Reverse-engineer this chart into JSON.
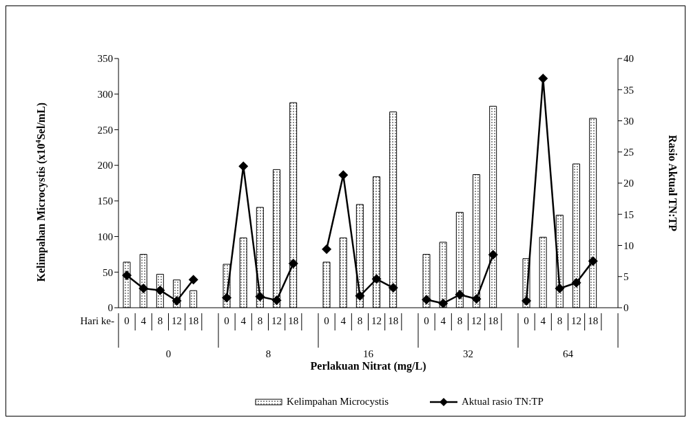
{
  "chart_data": {
    "type": "bar",
    "ylabel": "Kelimpahan Microcystis (x10$^{4}$Sel/mL)",
    "y2label": "Rasio Aktual TN:TP",
    "xlabel": "Perlakuan Nitrat (mg/L)",
    "categories": [
      "0",
      "4",
      "8",
      "12",
      "18",
      null,
      "0",
      "4",
      "8",
      "12",
      "18",
      null,
      "0",
      "4",
      "8",
      "12",
      "18",
      null,
      "0",
      "4",
      "8",
      "12",
      "18",
      null,
      "0",
      "4",
      "8",
      "12",
      "18",
      null
    ],
    "annotations": [
      "Hari ke-",
      "0",
      "8",
      "16",
      "32",
      "64"
    ],
    "series": [
      {
        "name": "Kelimpahan Microcystis",
        "color": "#000000",
        "values": [
          64,
          75,
          47,
          39,
          24,
          null,
          61,
          98,
          141,
          194,
          288,
          null,
          64,
          98,
          145,
          184,
          275,
          null,
          75,
          92,
          134,
          187,
          283,
          null,
          69,
          99,
          130,
          202,
          266,
          null
        ]
      },
      {
        "name": "Aktual rasio TN:TP",
        "type": "line",
        "axis": "y2",
        "color": "#000000",
        "marker": "diamond",
        "values": [
          5.2,
          3.1,
          2.8,
          1.1,
          4.5,
          null,
          1.6,
          22.7,
          1.8,
          1.2,
          7.1,
          null,
          9.4,
          21.3,
          1.9,
          4.6,
          3.2,
          null,
          1.3,
          0.7,
          2.1,
          1.4,
          8.5,
          null,
          1.1,
          36.8,
          3.1,
          4.0,
          7.5,
          null
        ]
      }
    ],
    "ylim": [
      0,
      350
    ],
    "yticks": [
      0,
      50,
      100,
      150,
      200,
      250,
      300,
      350
    ],
    "y2lim": [
      0,
      40
    ],
    "y2ticks": [
      0,
      5,
      10,
      15,
      20,
      25,
      30,
      35,
      40
    ],
    "legend": "bottom"
  }
}
